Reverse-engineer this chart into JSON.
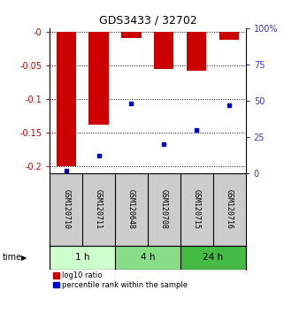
{
  "title": "GDS3433 / 32702",
  "samples": [
    "GSM120710",
    "GSM120711",
    "GSM120648",
    "GSM120708",
    "GSM120715",
    "GSM120716"
  ],
  "time_groups": [
    {
      "label": "1 h",
      "color": "#ccffcc",
      "count": 2
    },
    {
      "label": "4 h",
      "color": "#88dd88",
      "count": 2
    },
    {
      "label": "24 h",
      "color": "#44bb44",
      "count": 2
    }
  ],
  "log10_ratio": [
    -0.2,
    -0.138,
    -0.01,
    -0.055,
    -0.058,
    -0.012
  ],
  "percentile_rank_pct": [
    2,
    12,
    48,
    20,
    30,
    47
  ],
  "ylim_left": [
    -0.21,
    0.005
  ],
  "ylim_right": [
    -1.05,
    5.25
  ],
  "yticks_left": [
    0.0,
    -0.05,
    -0.1,
    -0.15,
    -0.2
  ],
  "yticks_right": [
    100,
    75,
    50,
    25,
    0
  ],
  "ytick_labels_left": [
    "-0",
    "-0.05",
    "-0.1",
    "-0.15",
    "-0.2"
  ],
  "ytick_labels_right": [
    "100%",
    "75",
    "50",
    "25",
    "0"
  ],
  "bar_color": "#cc0000",
  "marker_color": "#0000cc",
  "bar_width": 0.6,
  "left_tick_color": "#cc0000",
  "right_tick_color": "#3333cc",
  "bg_color": "#ffffff",
  "sample_bg": "#cccccc",
  "grid_linestyle": "dotted",
  "grid_linewidth": 0.7,
  "title_fontsize": 9
}
